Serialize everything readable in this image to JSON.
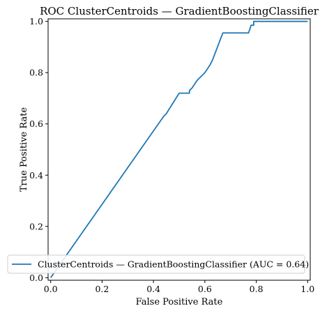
{
  "chart_data": {
    "type": "line",
    "title": "ROC ClusterCentroids — GradientBoostingClassifier",
    "xlabel": "False Positive Rate",
    "ylabel": "True Positive Rate",
    "xlim": [
      -0.01,
      1.01
    ],
    "ylim": [
      -0.01,
      1.01
    ],
    "xticks": [
      "0.0",
      "0.2",
      "0.4",
      "0.6",
      "0.8",
      "1.0"
    ],
    "yticks": [
      "0.0",
      "0.2",
      "0.4",
      "0.6",
      "0.8",
      "1.0"
    ],
    "grid": false,
    "legend_position": "lower right",
    "series": [
      {
        "name": "ClusterCentroids — GradientBoostingClassifier (AUC = 0.64)",
        "color": "#1f77b4",
        "x": [
          0.0,
          0.0,
          0.44,
          0.45,
          0.5,
          0.54,
          0.54,
          0.55,
          0.57,
          0.6,
          0.6,
          0.62,
          0.63,
          0.67,
          0.77,
          0.78,
          0.79,
          0.79,
          1.0
        ],
        "y": [
          0.0,
          0.0,
          0.63,
          0.64,
          0.72,
          0.72,
          0.73,
          0.74,
          0.77,
          0.8,
          0.8,
          0.83,
          0.85,
          0.955,
          0.955,
          0.985,
          0.985,
          1.0,
          1.0
        ]
      }
    ]
  }
}
